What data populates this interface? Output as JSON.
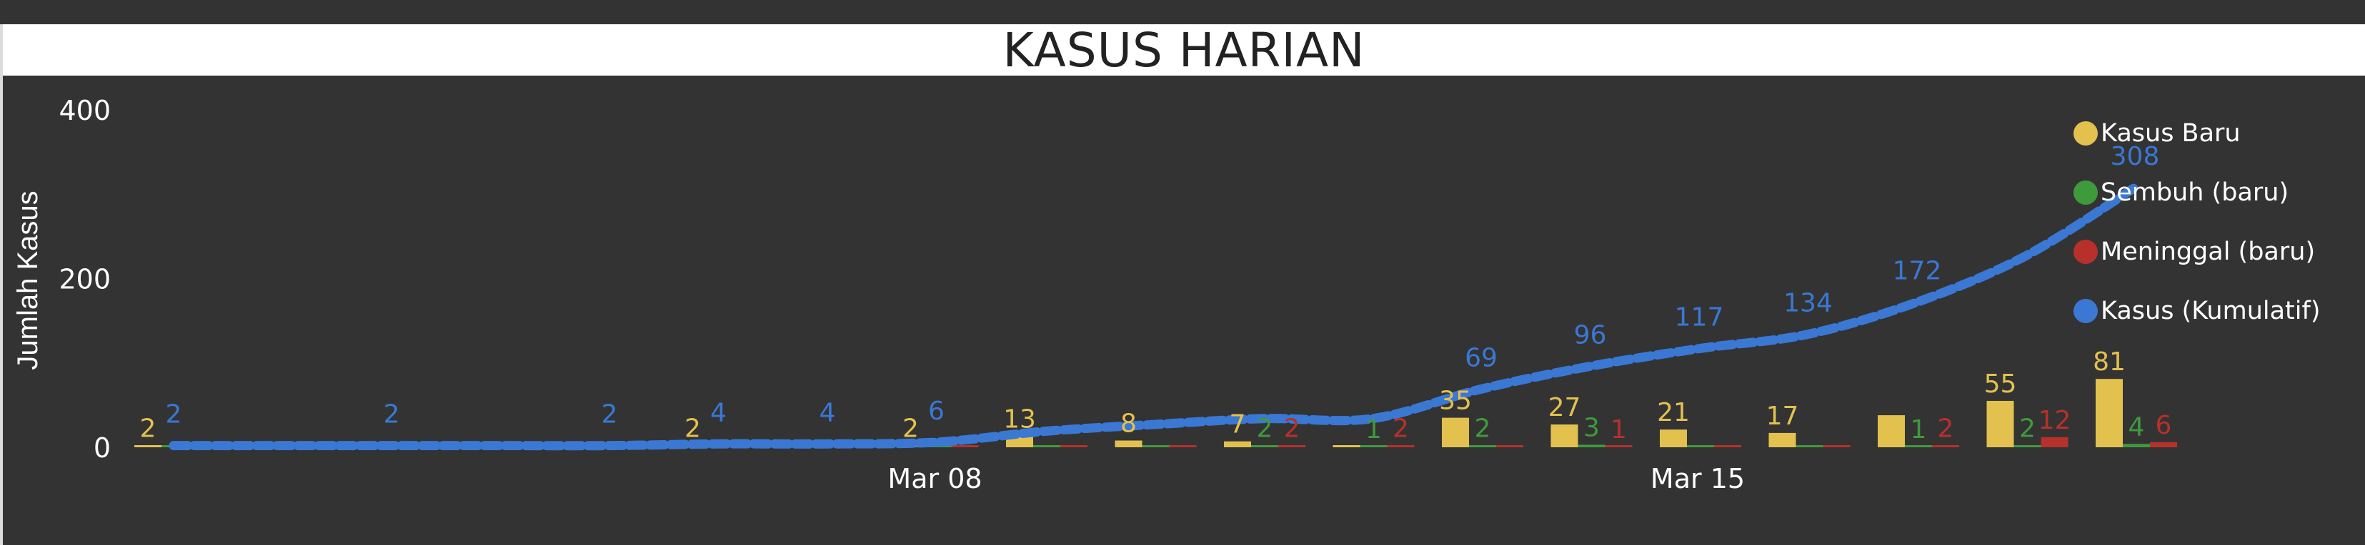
{
  "chart_data": {
    "type": "bar+line",
    "title": "KASUS HARIAN",
    "ylabel": "Jumlah Kasus",
    "xlabel": "",
    "ylim": [
      0,
      400
    ],
    "yticks": [
      "0",
      "200",
      "400"
    ],
    "x_tick_labels": [
      {
        "label": "Mar 08",
        "at": "2020-03-08"
      },
      {
        "label": "Mar 15",
        "at": "2020-03-15"
      }
    ],
    "legend_position": "right",
    "x": [
      "2020-03-01",
      "2020-03-02",
      "2020-03-03",
      "2020-03-04",
      "2020-03-05",
      "2020-03-06",
      "2020-03-07",
      "2020-03-08",
      "2020-03-09",
      "2020-03-10",
      "2020-03-11",
      "2020-03-12",
      "2020-03-13",
      "2020-03-14",
      "2020-03-15",
      "2020-03-16",
      "2020-03-17",
      "2020-03-18",
      "2020-03-19",
      "2020-03-20",
      "2020-03-21"
    ],
    "series": [
      {
        "name": "Kasus Baru",
        "kind": "bar",
        "color": "#E3C14F",
        "values": [
          2,
          0,
          0,
          0,
          0,
          2,
          0,
          2,
          13,
          8,
          7,
          0,
          35,
          27,
          21,
          17,
          38,
          55,
          81,
          null,
          null
        ],
        "labels": [
          "2",
          "",
          "",
          "",
          "",
          "2",
          "",
          "2",
          "13",
          "8",
          "7",
          "",
          "35",
          "27",
          "21",
          "17",
          "",
          "55",
          "81",
          "",
          ""
        ]
      },
      {
        "name": "Sembuh (baru)",
        "kind": "bar",
        "color": "#3F9A3C",
        "values": [
          0,
          0,
          0,
          0,
          0,
          0,
          0,
          0,
          0,
          0,
          2,
          1,
          2,
          3,
          0,
          0,
          1,
          2,
          4,
          null,
          null
        ],
        "labels": [
          "",
          "",
          "",
          "",
          "",
          "",
          "",
          "",
          "",
          "",
          "2",
          "1",
          "2",
          "3",
          "",
          "",
          "1",
          "2",
          "4",
          "",
          ""
        ]
      },
      {
        "name": "Meninggal (baru)",
        "kind": "bar",
        "color": "#B8302B",
        "values": [
          0,
          0,
          0,
          0,
          0,
          0,
          0,
          0,
          0,
          0,
          2,
          2,
          0,
          1,
          0,
          0,
          2,
          12,
          6,
          null,
          null
        ],
        "labels": [
          "",
          "",
          "",
          "",
          "",
          "",
          "",
          "",
          "",
          "",
          "2",
          "2",
          "",
          "1",
          "",
          "",
          "2",
          "12",
          "6",
          "",
          ""
        ]
      },
      {
        "name": "Kasus (Kumulatif)",
        "kind": "line",
        "color": "#3A78D4",
        "values": [
          2,
          2,
          2,
          2,
          2,
          4,
          4,
          6,
          19,
          27,
          34,
          34,
          69,
          96,
          117,
          134,
          172,
          227,
          308,
          null,
          null
        ],
        "labels": [
          "2",
          "",
          "2",
          "",
          "2",
          "4",
          "4",
          "6",
          "",
          "",
          "",
          "",
          "69",
          "96",
          "117",
          "134",
          "172",
          "",
          "308",
          "",
          ""
        ]
      }
    ]
  }
}
